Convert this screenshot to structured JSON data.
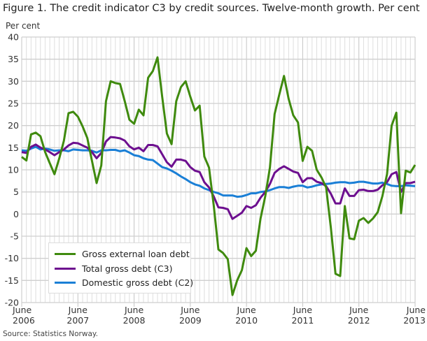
{
  "title": "Figure 1. The credit indicator C3 by credit sources. Twelve-month growth. Per cent",
  "source": "Source: Statistics Norway.",
  "chart_data": {
    "type": "line",
    "ylabel": "Per cent",
    "ylim": [
      -20,
      40
    ],
    "yticks": [
      -20,
      -15,
      -10,
      -5,
      0,
      5,
      10,
      15,
      20,
      25,
      30,
      35,
      40
    ],
    "xlim": [
      "2006-06",
      "2013-06"
    ],
    "xticks": [
      {
        "line1": "June",
        "line2": "2006"
      },
      {
        "line1": "June",
        "line2": "2007"
      },
      {
        "line1": "June",
        "line2": "2008"
      },
      {
        "line1": "June",
        "line2": "2009"
      },
      {
        "line1": "June",
        "line2": "2010"
      },
      {
        "line1": "June",
        "line2": "2011"
      },
      {
        "line1": "June",
        "line2": "2012"
      },
      {
        "line1": "June",
        "line2": "2013"
      }
    ],
    "grid": true,
    "legend_position": "bottom-left",
    "x": [
      "2006-06",
      "2006-07",
      "2006-08",
      "2006-09",
      "2006-10",
      "2006-11",
      "2006-12",
      "2007-01",
      "2007-02",
      "2007-03",
      "2007-04",
      "2007-05",
      "2007-06",
      "2007-07",
      "2007-08",
      "2007-09",
      "2007-10",
      "2007-11",
      "2007-12",
      "2008-01",
      "2008-02",
      "2008-03",
      "2008-04",
      "2008-05",
      "2008-06",
      "2008-07",
      "2008-08",
      "2008-09",
      "2008-10",
      "2008-11",
      "2008-12",
      "2009-01",
      "2009-02",
      "2009-03",
      "2009-04",
      "2009-05",
      "2009-06",
      "2009-07",
      "2009-08",
      "2009-09",
      "2009-10",
      "2009-11",
      "2009-12",
      "2010-01",
      "2010-02",
      "2010-03",
      "2010-04",
      "2010-05",
      "2010-06",
      "2010-07",
      "2010-08",
      "2010-09",
      "2010-10",
      "2010-11",
      "2010-12",
      "2011-01",
      "2011-02",
      "2011-03",
      "2011-04",
      "2011-05",
      "2011-06",
      "2011-07",
      "2011-08",
      "2011-09",
      "2011-10",
      "2011-11",
      "2011-12",
      "2012-01",
      "2012-02",
      "2012-03",
      "2012-04",
      "2012-05",
      "2012-06",
      "2012-07",
      "2012-08",
      "2012-09",
      "2012-10",
      "2012-11",
      "2012-12",
      "2013-01",
      "2013-02",
      "2013-03",
      "2013-04",
      "2013-05",
      "2013-06"
    ],
    "series": [
      {
        "name": "Gross external loan debt",
        "color": "#3f8a0e",
        "values": [
          12.9,
          12.1,
          18,
          18.4,
          17.6,
          14,
          11.5,
          9,
          12.5,
          16.5,
          22.8,
          23.1,
          22,
          19.8,
          17.2,
          12,
          7,
          11,
          25.5,
          30,
          29.6,
          29.4,
          25.5,
          21.3,
          20.4,
          23.6,
          22.3,
          30.8,
          32.3,
          35.4,
          26.5,
          18.2,
          15.8,
          25.5,
          28.7,
          30,
          26.5,
          23.4,
          24.5,
          13,
          10.5,
          2,
          -8,
          -8.8,
          -10.2,
          -18.3,
          -15,
          -12.7,
          -7.7,
          -9.5,
          -8.3,
          -1,
          4,
          10.5,
          22.6,
          27,
          31.2,
          26,
          22.3,
          20.7,
          12,
          15.2,
          14.3,
          10,
          8.3,
          6,
          -3,
          -13.5,
          -14,
          1.8,
          -5.5,
          -5.7,
          -1.5,
          -0.9,
          -2,
          -1,
          0.4,
          4,
          9,
          20,
          22.9,
          0.2,
          9.8,
          9.4,
          11.1
        ]
      },
      {
        "name": "Total gross debt (C3)",
        "color": "#6d0f8f",
        "values": [
          14,
          13.8,
          15.2,
          15.7,
          15,
          14.6,
          14,
          13.3,
          14,
          14.6,
          15.5,
          16.1,
          16,
          15.5,
          15,
          14,
          12.6,
          13.8,
          16.4,
          17.4,
          17.3,
          17.1,
          16.6,
          15.3,
          14.6,
          15,
          14.2,
          15.6,
          15.6,
          15.3,
          13.5,
          11.7,
          10.7,
          12.3,
          12.3,
          12,
          10.6,
          9.8,
          9.5,
          7.2,
          6,
          4,
          1.5,
          1.4,
          1.1,
          -1.1,
          -0.4,
          0.3,
          1.8,
          1.4,
          2,
          3.7,
          5,
          6.8,
          9.3,
          10.2,
          10.8,
          10.2,
          9.6,
          9.3,
          7.2,
          8.1,
          8.1,
          7.3,
          7,
          6.3,
          4.6,
          2.4,
          2.4,
          5.8,
          4.1,
          4.1,
          5.4,
          5.5,
          5.2,
          5.2,
          5.5,
          6.5,
          7.2,
          9,
          9.5,
          5,
          7,
          7,
          7.3
        ]
      },
      {
        "name": "Domestic gross debt (C2)",
        "color": "#1a7fd6",
        "values": [
          14.4,
          14.3,
          14.8,
          15.2,
          14.6,
          14.8,
          14.6,
          14.3,
          14.4,
          14.4,
          14.2,
          14.6,
          14.5,
          14.4,
          14.4,
          14.3,
          13.9,
          14.4,
          14.4,
          14.5,
          14.5,
          14.2,
          14.4,
          13.9,
          13.3,
          13.1,
          12.6,
          12.3,
          12.2,
          11.4,
          10.6,
          10.3,
          9.8,
          9.2,
          8.5,
          7.9,
          7.2,
          6.7,
          6.4,
          5.8,
          5.4,
          5,
          4.7,
          4.2,
          4.2,
          4.2,
          3.9,
          4,
          4.3,
          4.7,
          4.7,
          5,
          5.1,
          5.4,
          5.8,
          6.1,
          6.1,
          5.9,
          6.2,
          6.4,
          6.4,
          6,
          6.2,
          6.5,
          6.7,
          6.8,
          6.9,
          7.1,
          7.2,
          7.2,
          7,
          7.1,
          7.3,
          7.3,
          7.1,
          6.9,
          6.9,
          7.1,
          6.8,
          6.4,
          6.3,
          6.3,
          6.5,
          6.4,
          6.3
        ]
      }
    ]
  }
}
